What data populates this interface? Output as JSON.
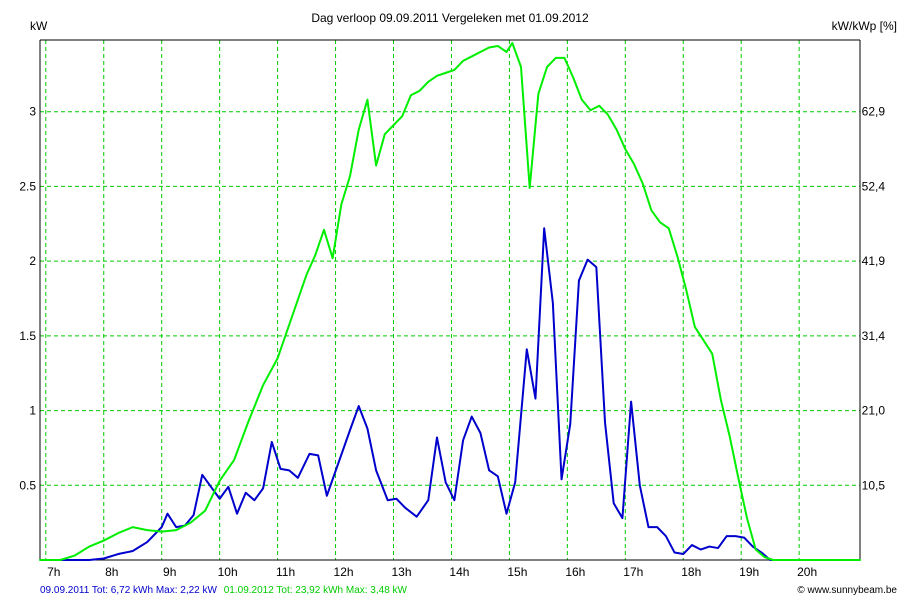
{
  "chart_data": {
    "type": "line",
    "title": "Dag  verloop 09.09.2011   Vergeleken met 01.09.2012",
    "ylabel_left": "kW",
    "ylabel_right": "kW/kWp [%]",
    "x_range_hours": [
      6.9,
      21.05
    ],
    "ylim": [
      0,
      3.48
    ],
    "x_ticks": [
      {
        "value": 7,
        "label": "7h"
      },
      {
        "value": 8,
        "label": "8h"
      },
      {
        "value": 9,
        "label": "9h"
      },
      {
        "value": 10,
        "label": "10h"
      },
      {
        "value": 11,
        "label": "11h"
      },
      {
        "value": 12,
        "label": "12h"
      },
      {
        "value": 13,
        "label": "13h"
      },
      {
        "value": 14,
        "label": "14h"
      },
      {
        "value": 15,
        "label": "15h"
      },
      {
        "value": 16,
        "label": "16h"
      },
      {
        "value": 17,
        "label": "17h"
      },
      {
        "value": 18,
        "label": "18h"
      },
      {
        "value": 19,
        "label": "19h"
      },
      {
        "value": 20,
        "label": "20h"
      }
    ],
    "y_ticks_left": [
      {
        "value": 0.5,
        "label": "0.5"
      },
      {
        "value": 1,
        "label": "1"
      },
      {
        "value": 1.5,
        "label": "1.5"
      },
      {
        "value": 2,
        "label": "2"
      },
      {
        "value": 2.5,
        "label": "2.5"
      },
      {
        "value": 3,
        "label": "3"
      }
    ],
    "y_ticks_right": [
      {
        "value": 0.5,
        "label": "10,5"
      },
      {
        "value": 1,
        "label": "21,0"
      },
      {
        "value": 1.5,
        "label": "31,4"
      },
      {
        "value": 2,
        "label": "41,9"
      },
      {
        "value": 2.5,
        "label": "52,4"
      },
      {
        "value": 3,
        "label": "62,9"
      }
    ],
    "grid": true,
    "colors": {
      "grid": "#00cc00",
      "series_2011": "#0000cc",
      "series_2012": "#00ee00",
      "footer_2011": "#0000cc",
      "footer_2012": "#00cc00"
    },
    "series": [
      {
        "name": "09.09.2011",
        "summary": "09.09.2011 Tot: 6,72 kWh Max: 2,22 kW",
        "color": "#0000cc",
        "points": [
          [
            7.0,
            0
          ],
          [
            7.25,
            0
          ],
          [
            7.5,
            0
          ],
          [
            7.75,
            0
          ],
          [
            8.0,
            0.01
          ],
          [
            8.25,
            0.04
          ],
          [
            8.5,
            0.06
          ],
          [
            8.75,
            0.12
          ],
          [
            9.0,
            0.22
          ],
          [
            9.1,
            0.31
          ],
          [
            9.25,
            0.22
          ],
          [
            9.4,
            0.23
          ],
          [
            9.55,
            0.3
          ],
          [
            9.7,
            0.57
          ],
          [
            9.85,
            0.49
          ],
          [
            10.0,
            0.41
          ],
          [
            10.15,
            0.49
          ],
          [
            10.3,
            0.31
          ],
          [
            10.45,
            0.45
          ],
          [
            10.6,
            0.4
          ],
          [
            10.75,
            0.48
          ],
          [
            10.9,
            0.79
          ],
          [
            11.05,
            0.61
          ],
          [
            11.2,
            0.6
          ],
          [
            11.35,
            0.55
          ],
          [
            11.55,
            0.71
          ],
          [
            11.7,
            0.7
          ],
          [
            11.85,
            0.43
          ],
          [
            12.05,
            0.65
          ],
          [
            12.25,
            0.87
          ],
          [
            12.4,
            1.03
          ],
          [
            12.55,
            0.88
          ],
          [
            12.7,
            0.6
          ],
          [
            12.9,
            0.4
          ],
          [
            13.05,
            0.41
          ],
          [
            13.2,
            0.35
          ],
          [
            13.4,
            0.29
          ],
          [
            13.6,
            0.4
          ],
          [
            13.75,
            0.82
          ],
          [
            13.9,
            0.52
          ],
          [
            14.05,
            0.4
          ],
          [
            14.2,
            0.8
          ],
          [
            14.35,
            0.96
          ],
          [
            14.5,
            0.85
          ],
          [
            14.65,
            0.6
          ],
          [
            14.8,
            0.56
          ],
          [
            14.95,
            0.31
          ],
          [
            15.1,
            0.52
          ],
          [
            15.3,
            1.41
          ],
          [
            15.45,
            1.08
          ],
          [
            15.6,
            2.22
          ],
          [
            15.75,
            1.72
          ],
          [
            15.9,
            0.54
          ],
          [
            16.05,
            0.91
          ],
          [
            16.2,
            1.87
          ],
          [
            16.35,
            2.01
          ],
          [
            16.5,
            1.96
          ],
          [
            16.65,
            0.92
          ],
          [
            16.8,
            0.38
          ],
          [
            16.95,
            0.28
          ],
          [
            17.1,
            1.06
          ],
          [
            17.25,
            0.5
          ],
          [
            17.4,
            0.22
          ],
          [
            17.55,
            0.22
          ],
          [
            17.7,
            0.16
          ],
          [
            17.85,
            0.05
          ],
          [
            18.0,
            0.04
          ],
          [
            18.15,
            0.1
          ],
          [
            18.3,
            0.07
          ],
          [
            18.45,
            0.09
          ],
          [
            18.6,
            0.08
          ],
          [
            18.75,
            0.16
          ],
          [
            18.9,
            0.16
          ],
          [
            19.05,
            0.15
          ],
          [
            19.2,
            0.09
          ],
          [
            19.35,
            0.05
          ],
          [
            19.5,
            0
          ],
          [
            19.75,
            0
          ],
          [
            20.0,
            0
          ],
          [
            20.5,
            0
          ],
          [
            21.0,
            0
          ]
        ]
      },
      {
        "name": "01.09.2012",
        "summary": "01.09.2012 Tot: 23,92 kWh Max: 3,48 kW",
        "color": "#00ee00",
        "points": [
          [
            6.9,
            0
          ],
          [
            7.25,
            0
          ],
          [
            7.5,
            0.03
          ],
          [
            7.75,
            0.09
          ],
          [
            8.0,
            0.13
          ],
          [
            8.25,
            0.18
          ],
          [
            8.5,
            0.22
          ],
          [
            8.75,
            0.2
          ],
          [
            9.0,
            0.19
          ],
          [
            9.25,
            0.2
          ],
          [
            9.5,
            0.25
          ],
          [
            9.75,
            0.33
          ],
          [
            10.0,
            0.53
          ],
          [
            10.25,
            0.67
          ],
          [
            10.5,
            0.93
          ],
          [
            10.75,
            1.17
          ],
          [
            11.0,
            1.35
          ],
          [
            11.25,
            1.63
          ],
          [
            11.5,
            1.91
          ],
          [
            11.65,
            2.04
          ],
          [
            11.8,
            2.21
          ],
          [
            11.95,
            2.02
          ],
          [
            12.1,
            2.38
          ],
          [
            12.25,
            2.57
          ],
          [
            12.4,
            2.88
          ],
          [
            12.55,
            3.08
          ],
          [
            12.7,
            2.64
          ],
          [
            12.85,
            2.85
          ],
          [
            13.0,
            2.91
          ],
          [
            13.15,
            2.97
          ],
          [
            13.3,
            3.11
          ],
          [
            13.45,
            3.14
          ],
          [
            13.6,
            3.2
          ],
          [
            13.75,
            3.24
          ],
          [
            13.9,
            3.26
          ],
          [
            14.05,
            3.28
          ],
          [
            14.2,
            3.34
          ],
          [
            14.35,
            3.37
          ],
          [
            14.5,
            3.4
          ],
          [
            14.65,
            3.43
          ],
          [
            14.8,
            3.44
          ],
          [
            14.95,
            3.4
          ],
          [
            15.05,
            3.46
          ],
          [
            15.2,
            3.3
          ],
          [
            15.35,
            2.49
          ],
          [
            15.5,
            3.12
          ],
          [
            15.65,
            3.3
          ],
          [
            15.8,
            3.36
          ],
          [
            15.95,
            3.36
          ],
          [
            16.1,
            3.23
          ],
          [
            16.25,
            3.08
          ],
          [
            16.4,
            3.01
          ],
          [
            16.55,
            3.04
          ],
          [
            16.7,
            2.98
          ],
          [
            16.85,
            2.88
          ],
          [
            17.0,
            2.75
          ],
          [
            17.15,
            2.65
          ],
          [
            17.3,
            2.52
          ],
          [
            17.45,
            2.34
          ],
          [
            17.6,
            2.26
          ],
          [
            17.75,
            2.22
          ],
          [
            17.9,
            2.03
          ],
          [
            18.05,
            1.81
          ],
          [
            18.2,
            1.56
          ],
          [
            18.35,
            1.47
          ],
          [
            18.5,
            1.38
          ],
          [
            18.65,
            1.07
          ],
          [
            18.8,
            0.83
          ],
          [
            18.95,
            0.55
          ],
          [
            19.1,
            0.28
          ],
          [
            19.25,
            0.07
          ],
          [
            19.4,
            0.02
          ],
          [
            19.55,
            0
          ],
          [
            20.0,
            0
          ],
          [
            20.5,
            0
          ],
          [
            21.05,
            0
          ]
        ]
      }
    ],
    "footer": {
      "left_2011": "09.09.2011 Tot: 6,72 kWh Max: 2,22 kW",
      "left_2012": "01.09.2012 Tot: 23,92 kWh Max: 3,48 kW",
      "right": "© www.sunnybeam.be"
    }
  }
}
